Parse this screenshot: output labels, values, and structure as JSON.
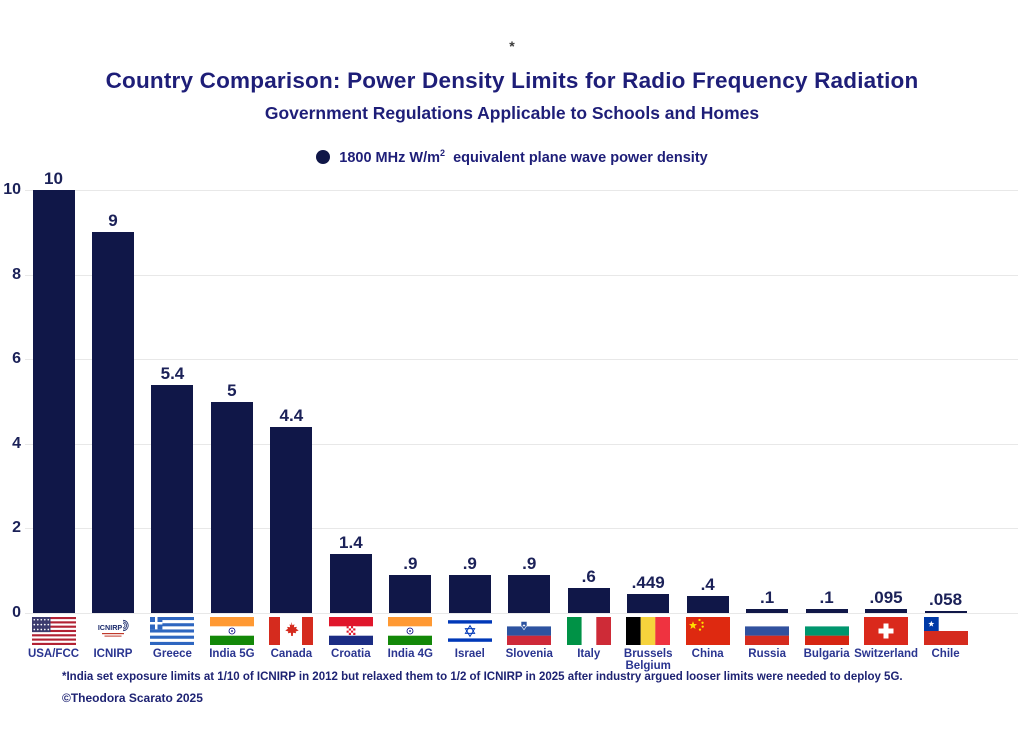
{
  "chart_data": {
    "type": "bar",
    "note_marker": "*",
    "title": "Country Comparison: Power Density Limits for Radio Frequency Radiation",
    "subtitle": "Government Regulations Applicable to Schools and Homes",
    "legend": {
      "marker": "filled-circle",
      "prefix": "1800 MHz W/m",
      "superscript": "2",
      "suffix": " equivalent plane wave power density",
      "position": "top-center"
    },
    "categories": [
      "USA/FCC",
      "ICNIRP",
      "Greece",
      "India 5G",
      "Canada",
      "Croatia",
      "India 4G",
      "Israel",
      "Slovenia",
      "Italy",
      "Brussels\nBelgium",
      "China",
      "Russia",
      "Bulgaria",
      "Switzerland",
      "Chile"
    ],
    "values": [
      10,
      9,
      5.4,
      5,
      4.4,
      1.4,
      0.9,
      0.9,
      0.9,
      0.6,
      0.449,
      0.4,
      0.1,
      0.1,
      0.095,
      0.058
    ],
    "value_labels": [
      "10",
      "9",
      "5.4",
      "5",
      "4.4",
      "1.4",
      ".9",
      ".9",
      ".9",
      ".6",
      ".449",
      ".4",
      ".1",
      ".1",
      ".095",
      ".058"
    ],
    "flags": [
      "usa",
      "icnirp",
      "greece",
      "india",
      "canada",
      "croatia",
      "india",
      "israel",
      "slovenia",
      "italy",
      "belgium",
      "china",
      "russia",
      "bulgaria",
      "switzerland",
      "chile"
    ],
    "xlabel": "",
    "ylabel": "",
    "ylim": [
      0,
      10
    ],
    "yticks": [
      0,
      2,
      4,
      6,
      8,
      10
    ],
    "grid": true,
    "footnote": "*India set exposure limits at 1/10 of ICNIRP in 2012 but relaxed them to 1/2 of ICNIRP in 2025 after industry argued looser limits were needed to deploy 5G.",
    "copyright": "©Theodora Scarato 2025"
  },
  "colors": {
    "bar": "#101748",
    "title_text": "#1e1e78",
    "axis_text": "#1b2158",
    "country_text": "#2a3590",
    "gridline": "#e8e8e8"
  }
}
